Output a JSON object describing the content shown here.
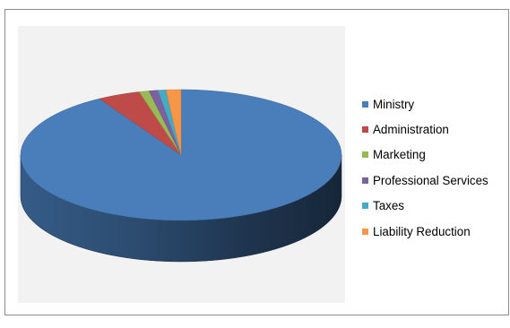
{
  "chart_data": {
    "type": "pie",
    "style": "3d",
    "title": "",
    "categories": [
      "Ministry",
      "Administration",
      "Marketing",
      "Professional Services",
      "Taxes",
      "Liability Reduction"
    ],
    "values": [
      91.5,
      4.3,
      1.0,
      0.9,
      0.8,
      1.5
    ],
    "value_unit": "percent of total",
    "colors": [
      "#4a7ebb",
      "#be4b48",
      "#98b954",
      "#7d60a0",
      "#46aac5",
      "#f79646"
    ],
    "legend_position": "right"
  }
}
